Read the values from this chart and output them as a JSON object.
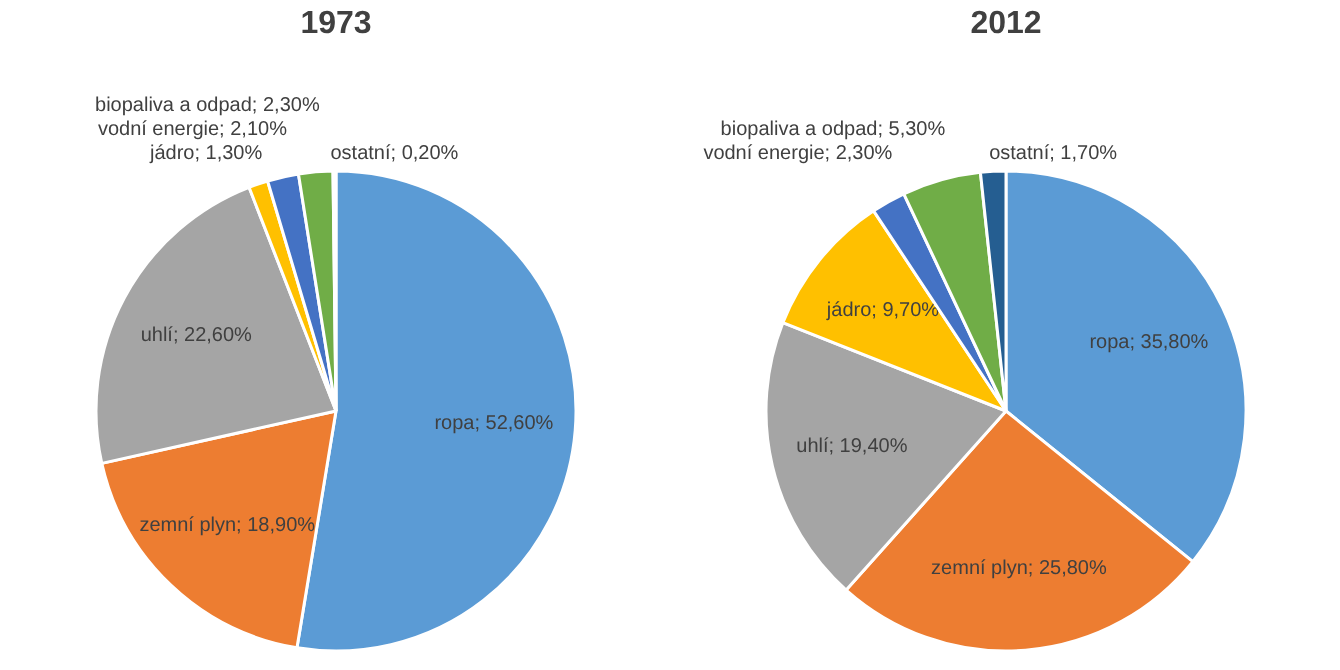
{
  "chart_data": [
    {
      "type": "pie",
      "title": "1973",
      "categories": [
        "ropa",
        "zemní plyn",
        "uhlí",
        "jádro",
        "vodní energie",
        "biopaliva a odpad",
        "ostatní"
      ],
      "values": [
        52.6,
        18.9,
        22.6,
        1.3,
        2.1,
        2.3,
        0.2
      ],
      "colors": [
        "#5b9bd5",
        "#ed7d31",
        "#a5a5a5",
        "#ffc000",
        "#4472c4",
        "#70ad47",
        "#255e91"
      ],
      "value_labels": [
        "52,60%",
        "18,90%",
        "22,60%",
        "1,30%",
        "2,10%",
        "2,30%",
        "0,20%"
      ]
    },
    {
      "type": "pie",
      "title": "2012",
      "categories": [
        "ropa",
        "zemní plyn",
        "uhlí",
        "jádro",
        "vodní energie",
        "biopaliva a odpad",
        "ostatní"
      ],
      "values": [
        35.8,
        25.8,
        19.4,
        9.7,
        2.3,
        5.3,
        1.7
      ],
      "colors": [
        "#5b9bd5",
        "#ed7d31",
        "#a5a5a5",
        "#ffc000",
        "#4472c4",
        "#70ad47",
        "#255e91"
      ],
      "value_labels": [
        "35,80%",
        "25,80%",
        "19,40%",
        "9,70%",
        "2,30%",
        "5,30%",
        "1,70%"
      ]
    }
  ]
}
